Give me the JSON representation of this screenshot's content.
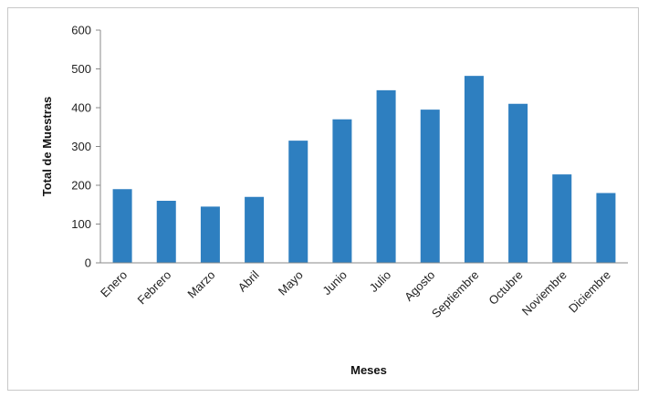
{
  "chart_data": {
    "type": "bar",
    "categories": [
      "Enero",
      "Febrero",
      "Marzo",
      "Abril",
      "Mayo",
      "Junio",
      "Julio",
      "Agosto",
      "Septiembre",
      "Octubre",
      "Noviembre",
      "Diciembre"
    ],
    "values": [
      190,
      160,
      145,
      170,
      315,
      370,
      445,
      395,
      482,
      410,
      228,
      180
    ],
    "xlabel": "Meses",
    "ylabel": "Total de Muestras",
    "ylim": [
      0,
      600
    ],
    "yticks": [
      "0",
      "100",
      "200",
      "300",
      "400",
      "500",
      "600"
    ],
    "bar_color": "#2e7fc0",
    "grid": false,
    "legend": "none"
  }
}
